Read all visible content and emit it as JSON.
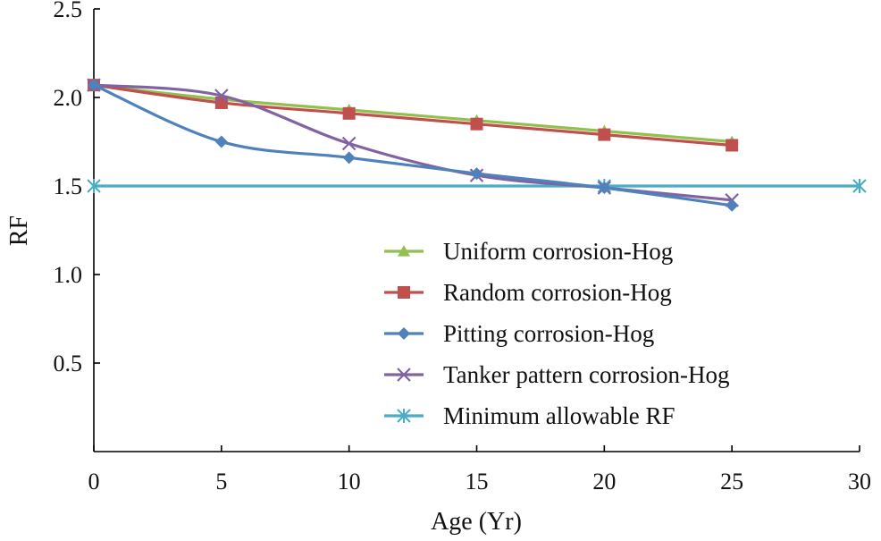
{
  "chart_data": {
    "type": "line",
    "title": "",
    "xlabel": "Age (Yr)",
    "ylabel": "RF",
    "xlim": [
      0,
      30
    ],
    "ylim": [
      0,
      2.5
    ],
    "xticks": [
      0,
      5,
      10,
      15,
      20,
      25,
      30
    ],
    "xtick_labels": [
      "0",
      "5",
      "10",
      "15",
      "20",
      "25",
      "30"
    ],
    "yticks": [
      0.5,
      1.0,
      1.5,
      2.0,
      2.5
    ],
    "ytick_labels": [
      "0.5",
      "1.0",
      "1.5",
      "2.0",
      "2.5"
    ],
    "grid": false,
    "legend_position": "bottom-right",
    "series": [
      {
        "name": "Uniform corrosion-Hog",
        "color": "#92c050",
        "marker": "triangle",
        "x": [
          0,
          5,
          10,
          15,
          20,
          25
        ],
        "y": [
          2.07,
          1.99,
          1.93,
          1.87,
          1.81,
          1.75
        ]
      },
      {
        "name": "Random corrosion-Hog",
        "color": "#c0504d",
        "marker": "square",
        "x": [
          0,
          5,
          10,
          15,
          20,
          25
        ],
        "y": [
          2.07,
          1.97,
          1.91,
          1.85,
          1.79,
          1.73
        ]
      },
      {
        "name": "Pitting corrosion-Hog",
        "color": "#4f81bd",
        "marker": "diamond",
        "x": [
          0,
          5,
          10,
          15,
          20,
          25
        ],
        "y": [
          2.07,
          1.75,
          1.66,
          1.57,
          1.49,
          1.39
        ]
      },
      {
        "name": "Tanker pattern corrosion-Hog",
        "color": "#8064a2",
        "marker": "x",
        "x": [
          0,
          5,
          10,
          15,
          20,
          25
        ],
        "y": [
          2.07,
          2.01,
          1.74,
          1.56,
          1.49,
          1.42
        ]
      },
      {
        "name": "Minimum allowable RF",
        "color": "#4bacc6",
        "marker": "asterisk",
        "x": [
          0,
          20,
          30
        ],
        "y": [
          1.5,
          1.5,
          1.5
        ]
      }
    ]
  }
}
